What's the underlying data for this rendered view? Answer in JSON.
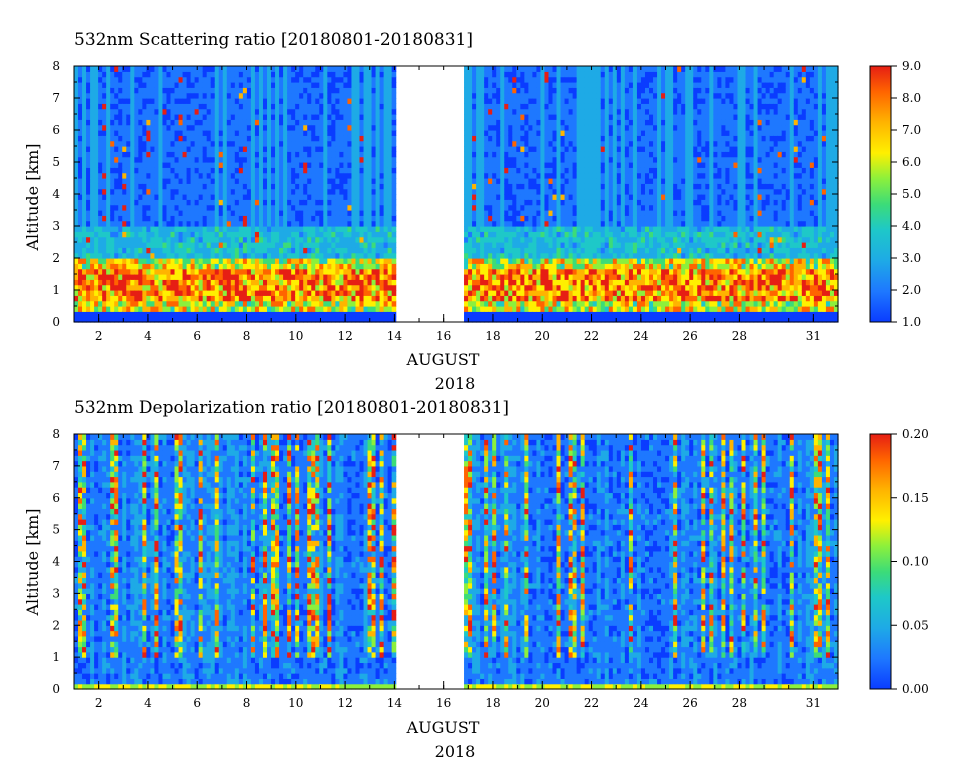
{
  "chart_data": [
    {
      "type": "heatmap",
      "title": "532nm Scattering ratio [20180801-20180831]",
      "ylabel": "Altitude [km]",
      "xlabel_month": "AUGUST",
      "xlabel_year": "2018",
      "x_range_days": [
        1,
        32
      ],
      "ylim": [
        0,
        8
      ],
      "x_ticks": [
        "2",
        "4",
        "6",
        "8",
        "10",
        "12",
        "14",
        "16",
        "18",
        "20",
        "22",
        "24",
        "26",
        "28",
        "31"
      ],
      "y_ticks": [
        "0",
        "1",
        "2",
        "3",
        "4",
        "5",
        "6",
        "7",
        "8"
      ],
      "data_gap_days": [
        14.0,
        16.8
      ],
      "colorbar": {
        "min": 1.0,
        "max": 9.0,
        "ticks": [
          "1.0",
          "2.0",
          "3.0",
          "4.0",
          "5.0",
          "6.0",
          "7.0",
          "8.0",
          "9.0"
        ]
      },
      "colormap": [
        "#0a3cff",
        "#1e78ff",
        "#1eaae6",
        "#1ec8c8",
        "#3cdc78",
        "#8cf03c",
        "#fff000",
        "#ffb400",
        "#ff6400",
        "#e61e14"
      ]
    },
    {
      "type": "heatmap",
      "title": "532nm Depolarization ratio [20180801-20180831]",
      "ylabel": "Altitude [km]",
      "xlabel_month": "AUGUST",
      "xlabel_year": "2018",
      "x_range_days": [
        1,
        32
      ],
      "ylim": [
        0,
        8
      ],
      "x_ticks": [
        "2",
        "4",
        "6",
        "8",
        "10",
        "12",
        "14",
        "16",
        "18",
        "20",
        "22",
        "24",
        "26",
        "28",
        "31"
      ],
      "y_ticks": [
        "0",
        "1",
        "2",
        "3",
        "4",
        "5",
        "6",
        "7",
        "8"
      ],
      "data_gap_days": [
        14.0,
        16.8
      ],
      "colorbar": {
        "min": 0.0,
        "max": 0.2,
        "ticks": [
          "0.00",
          "0.05",
          "0.10",
          "0.15",
          "0.20"
        ]
      },
      "colormap": [
        "#0a3cff",
        "#1e78ff",
        "#1eaae6",
        "#1ec8c8",
        "#3cdc78",
        "#8cf03c",
        "#fff000",
        "#ffb400",
        "#ff6400",
        "#e61e14"
      ]
    }
  ]
}
